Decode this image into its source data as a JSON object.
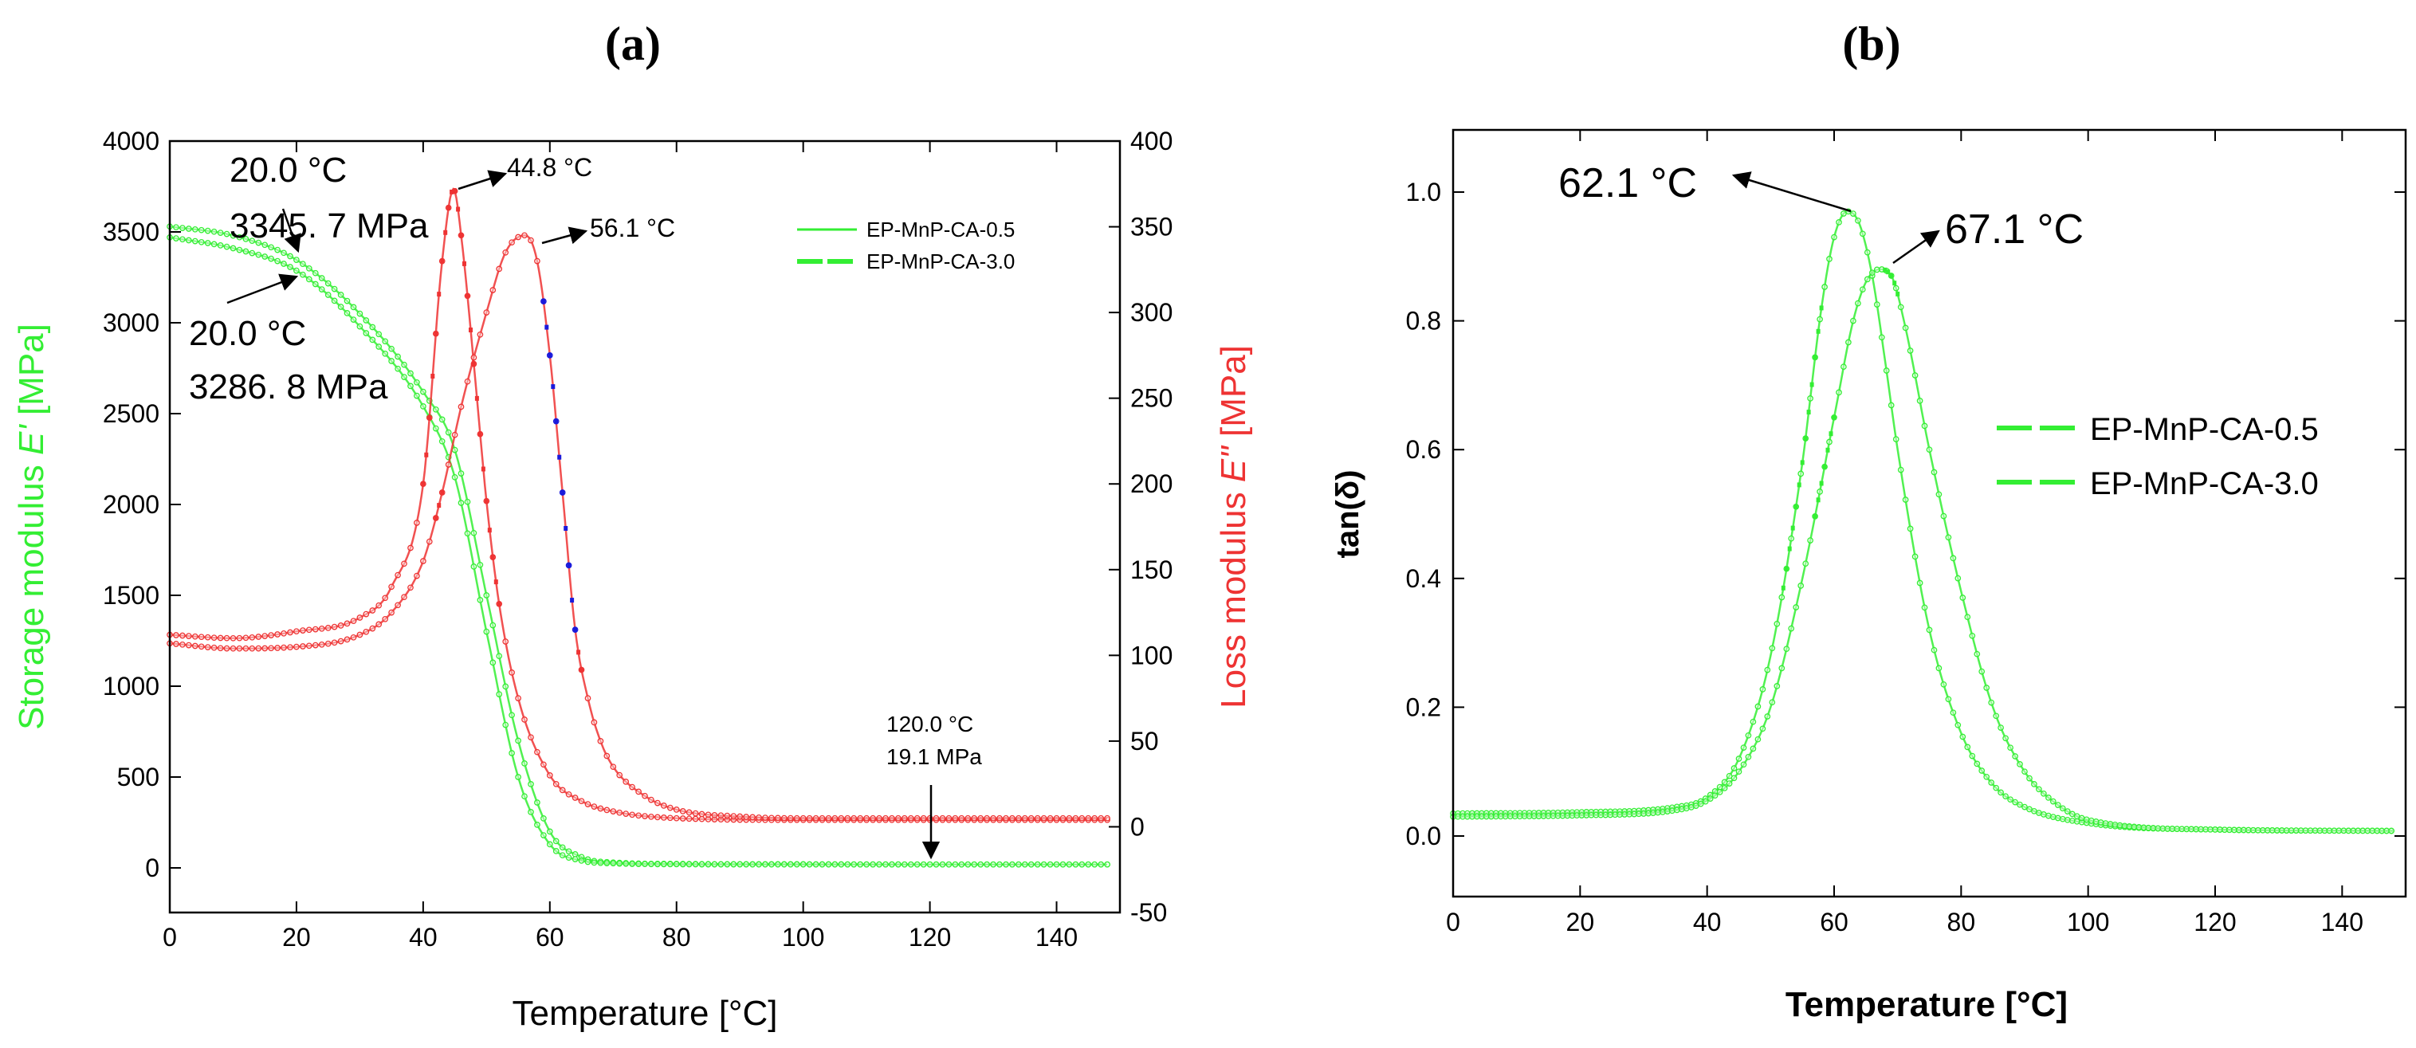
{
  "colors": {
    "storage": "#33ee33",
    "loss": "#ee3333",
    "tan": "#33ee33",
    "highlight_blue": "#1a1adb",
    "axis": "#000000",
    "annot": "#000000"
  },
  "chart_data": [
    {
      "type": "line",
      "panel_label": "(a)",
      "xlabel": "Temperature [°C]",
      "ylabel_left": "Storage modulus E' [MPa]",
      "ylabel_left_parts": [
        "Storage modulus ",
        "E'",
        " [MPa]"
      ],
      "ylabel_right": "Loss modulus E\" [MPa]",
      "ylabel_right_parts": [
        "Loss modulus ",
        "E\"",
        " [MPa]"
      ],
      "xlim": [
        0,
        150
      ],
      "ylim_left": [
        -100,
        4000
      ],
      "ylim_right": [
        -50,
        400
      ],
      "x_ticks": [
        0,
        20,
        40,
        60,
        80,
        100,
        120,
        140
      ],
      "y_ticks_left": [
        0,
        500,
        1000,
        1500,
        2000,
        2500,
        3000,
        3500,
        4000
      ],
      "y_ticks_right": [
        -50,
        0,
        50,
        100,
        150,
        200,
        250,
        300,
        350,
        400
      ],
      "legend": [
        "EP-MnP-CA-0.5",
        "EP-MnP-CA-3.0"
      ],
      "legend_position": "top-right",
      "series": [
        {
          "name": "EP-MnP-CA-0.5 E'",
          "axis": "left",
          "points": [
            [
              0,
              3530
            ],
            [
              10,
              3480
            ],
            [
              20,
              3346
            ],
            [
              30,
              3050
            ],
            [
              40,
              2620
            ],
            [
              45,
              2300
            ],
            [
              50,
              1500
            ],
            [
              55,
              700
            ],
            [
              60,
              200
            ],
            [
              65,
              60
            ],
            [
              70,
              30
            ],
            [
              80,
              22
            ],
            [
              100,
              20
            ],
            [
              120,
              19
            ],
            [
              148,
              19
            ]
          ]
        },
        {
          "name": "EP-MnP-CA-3.0 E'",
          "axis": "left",
          "points": [
            [
              0,
              3470
            ],
            [
              10,
              3410
            ],
            [
              20,
              3287
            ],
            [
              30,
              2980
            ],
            [
              40,
              2540
            ],
            [
              45,
              2150
            ],
            [
              50,
              1300
            ],
            [
              55,
              500
            ],
            [
              60,
              130
            ],
            [
              65,
              40
            ],
            [
              70,
              25
            ],
            [
              80,
              20
            ],
            [
              100,
              19
            ],
            [
              120,
              19
            ],
            [
              148,
              19
            ]
          ]
        },
        {
          "name": "EP-MnP-CA-0.5 E\"",
          "axis": "right",
          "points": [
            [
              0,
              112
            ],
            [
              10,
              110
            ],
            [
              20,
              114
            ],
            [
              30,
              122
            ],
            [
              35,
              140
            ],
            [
              40,
              200
            ],
            [
              43,
              330
            ],
            [
              44.8,
              372
            ],
            [
              46,
              345
            ],
            [
              48,
              270
            ],
            [
              50,
              190
            ],
            [
              52,
              130
            ],
            [
              55,
              75
            ],
            [
              60,
              30
            ],
            [
              65,
              15
            ],
            [
              70,
              9
            ],
            [
              80,
              5
            ],
            [
              100,
              4
            ],
            [
              148,
              4
            ]
          ]
        },
        {
          "name": "EP-MnP-CA-3.0 E\"",
          "axis": "right",
          "points": [
            [
              0,
              107
            ],
            [
              10,
              104
            ],
            [
              20,
              105
            ],
            [
              30,
              112
            ],
            [
              35,
              125
            ],
            [
              40,
              155
            ],
            [
              43,
              195
            ],
            [
              46,
              245
            ],
            [
              50,
              300
            ],
            [
              53,
              335
            ],
            [
              56.1,
              345
            ],
            [
              58,
              330
            ],
            [
              60,
              275
            ],
            [
              62,
              195
            ],
            [
              64,
              115
            ],
            [
              66,
              75
            ],
            [
              68,
              50
            ],
            [
              70,
              35
            ],
            [
              75,
              18
            ],
            [
              80,
              10
            ],
            [
              90,
              6
            ],
            [
              100,
              5
            ],
            [
              148,
              5
            ]
          ]
        }
      ],
      "annotations": [
        {
          "text_lines": [
            "20.0 °C",
            "3345. 7 MPa"
          ]
        },
        {
          "text_lines": [
            "20.0 °C",
            "3286. 8 MPa"
          ]
        },
        {
          "text_lines": [
            "44.8 °C"
          ]
        },
        {
          "text_lines": [
            "56.1 °C"
          ]
        },
        {
          "text_lines": [
            "120.0 °C",
            "19.1 MPa"
          ]
        }
      ]
    },
    {
      "type": "line",
      "panel_label": "(b)",
      "xlabel": "Temperature [°C]",
      "ylabel": "tan(δ)",
      "xlim": [
        0,
        150
      ],
      "ylim": [
        -0.1,
        1.1
      ],
      "x_ticks": [
        0,
        20,
        40,
        60,
        80,
        100,
        120,
        140
      ],
      "y_ticks": [
        0.0,
        0.2,
        0.4,
        0.6,
        0.8,
        1.0
      ],
      "y_tick_labels": [
        "0.0",
        "0.2",
        "0.4",
        "0.6",
        "0.8",
        "1.0"
      ],
      "legend": [
        "EP-MnP-CA-0.5",
        "EP-MnP-CA-3.0"
      ],
      "legend_position": "right",
      "series": [
        {
          "name": "EP-MnP-CA-0.5",
          "points": [
            [
              0,
              0.035
            ],
            [
              20,
              0.037
            ],
            [
              35,
              0.045
            ],
            [
              40,
              0.06
            ],
            [
              45,
              0.12
            ],
            [
              50,
              0.28
            ],
            [
              55,
              0.58
            ],
            [
              58,
              0.82
            ],
            [
              60,
              0.93
            ],
            [
              62.1,
              0.97
            ],
            [
              64,
              0.95
            ],
            [
              66,
              0.87
            ],
            [
              68,
              0.74
            ],
            [
              70,
              0.6
            ],
            [
              75,
              0.32
            ],
            [
              80,
              0.16
            ],
            [
              85,
              0.08
            ],
            [
              90,
              0.045
            ],
            [
              100,
              0.02
            ],
            [
              120,
              0.01
            ],
            [
              148,
              0.008
            ]
          ]
        },
        {
          "name": "EP-MnP-CA-3.0",
          "points": [
            [
              0,
              0.03
            ],
            [
              20,
              0.032
            ],
            [
              35,
              0.04
            ],
            [
              40,
              0.055
            ],
            [
              45,
              0.1
            ],
            [
              50,
              0.2
            ],
            [
              55,
              0.4
            ],
            [
              60,
              0.65
            ],
            [
              63,
              0.8
            ],
            [
              65,
              0.86
            ],
            [
              67.1,
              0.88
            ],
            [
              69,
              0.87
            ],
            [
              71,
              0.8
            ],
            [
              75,
              0.6
            ],
            [
              80,
              0.38
            ],
            [
              85,
              0.2
            ],
            [
              90,
              0.1
            ],
            [
              95,
              0.05
            ],
            [
              100,
              0.025
            ],
            [
              120,
              0.01
            ],
            [
              148,
              0.008
            ]
          ]
        }
      ],
      "annotations": [
        {
          "text_lines": [
            "62.1 °C"
          ]
        },
        {
          "text_lines": [
            "67.1 °C"
          ]
        }
      ]
    }
  ]
}
